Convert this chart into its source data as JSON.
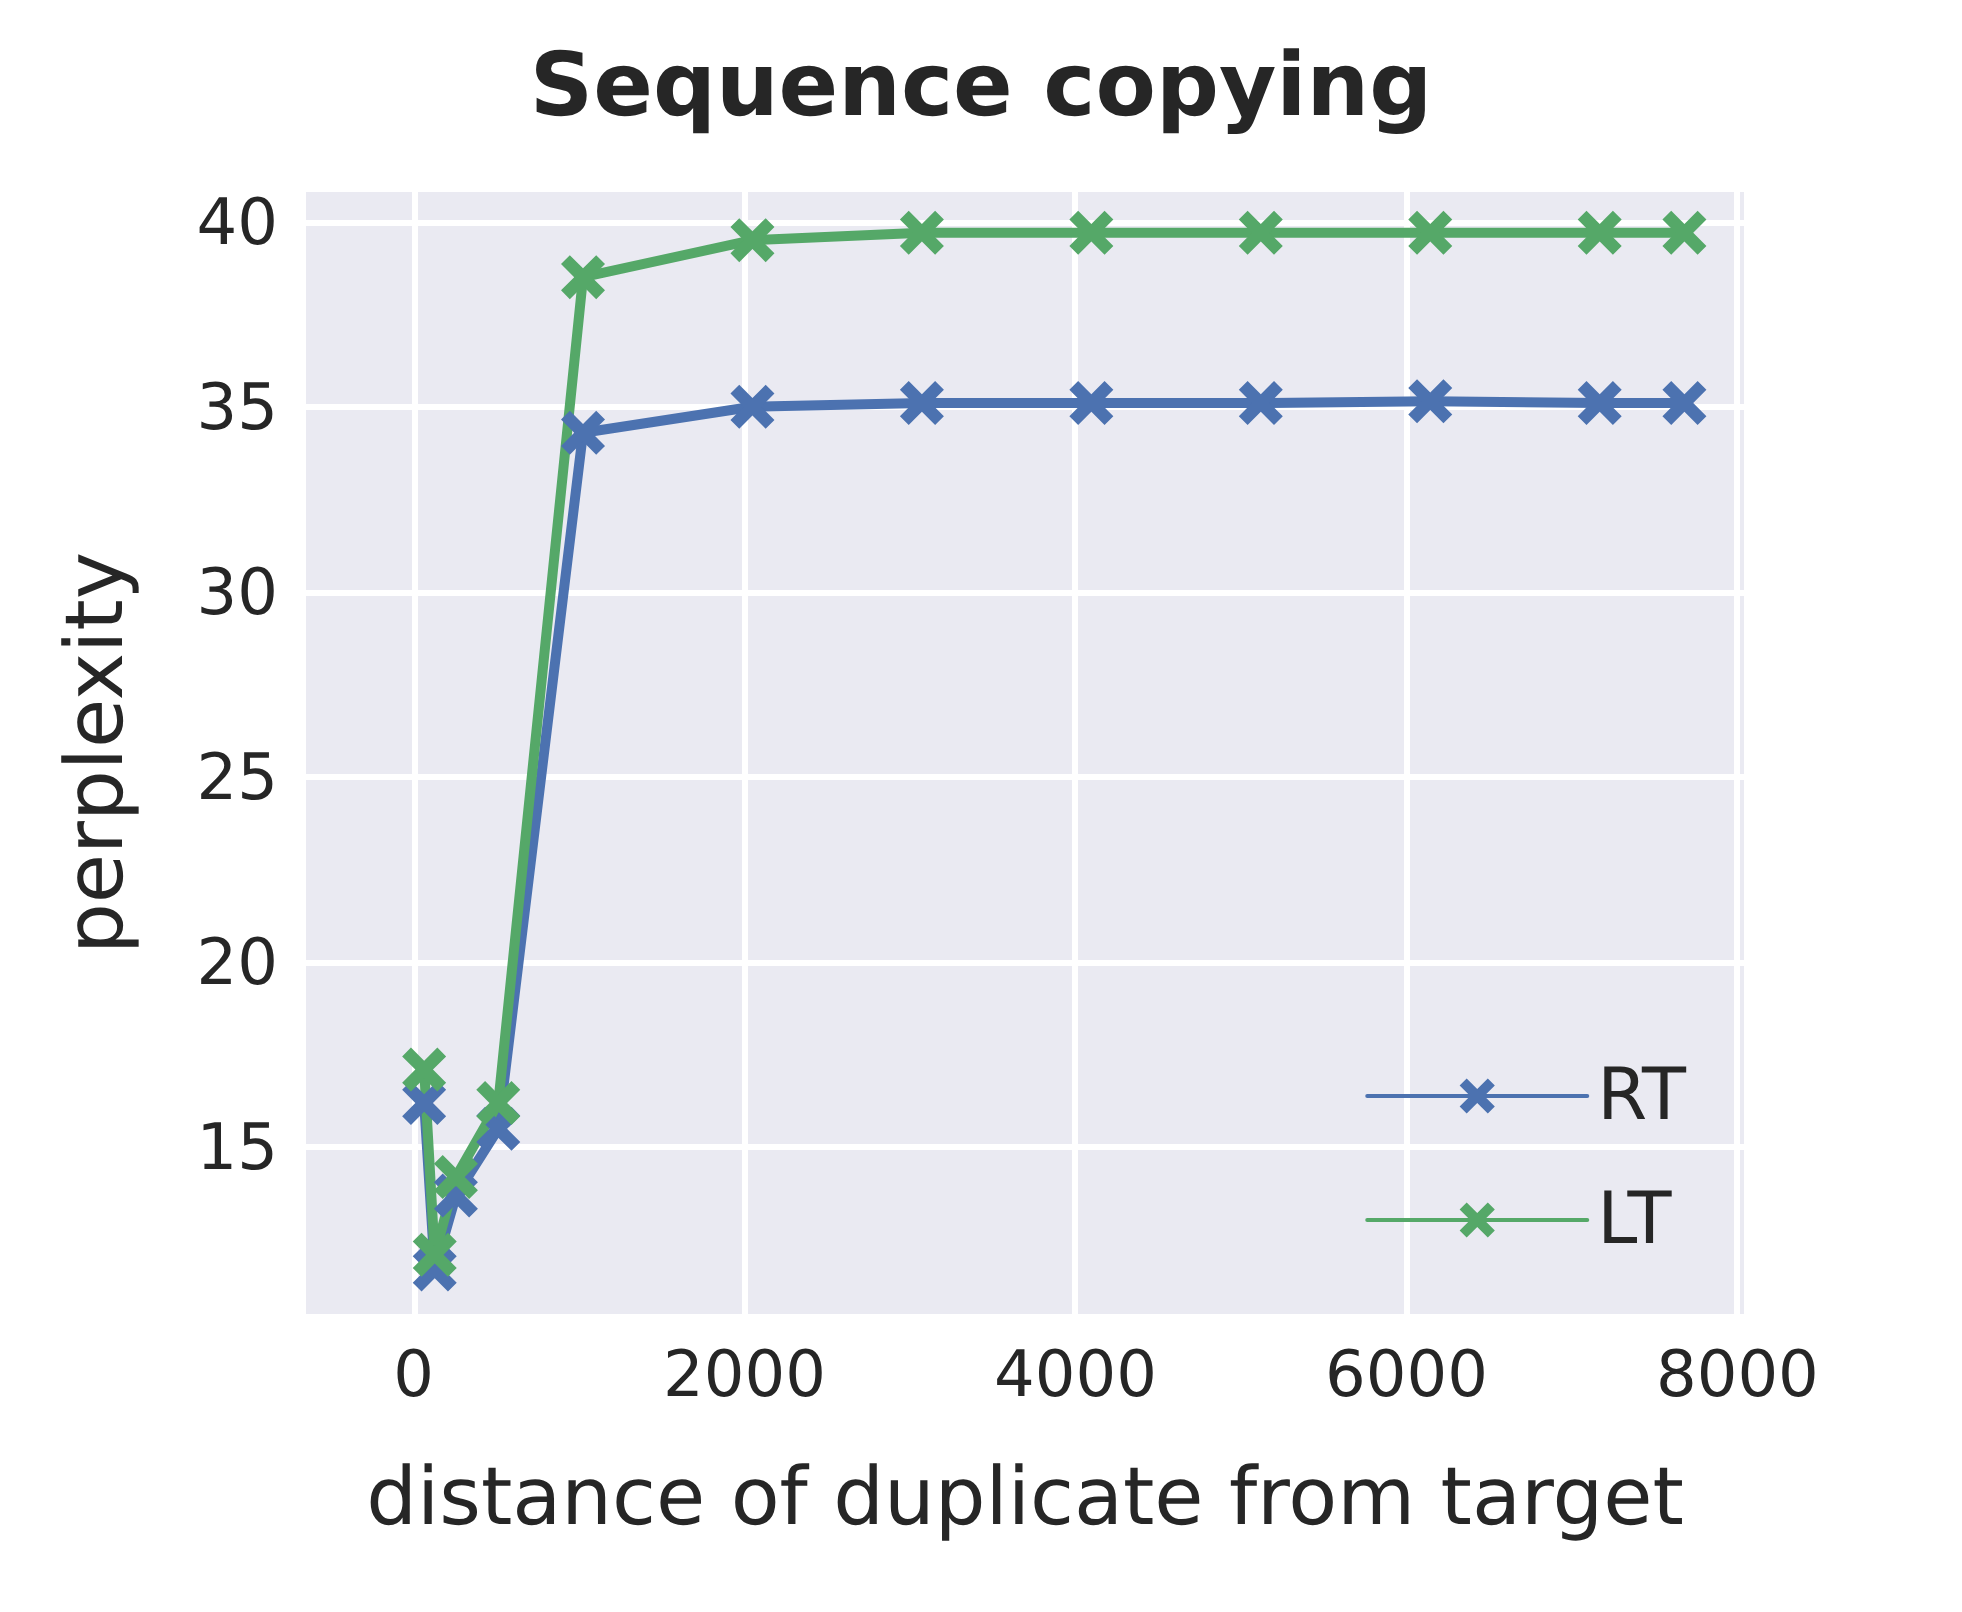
{
  "chart_data": {
    "type": "line",
    "title": "Sequence copying",
    "xlabel": "distance of duplicate from target",
    "ylabel": "perplexity",
    "x": [
      64,
      128,
      256,
      512,
      1024,
      2048,
      3072,
      4096,
      5120,
      6144,
      7168,
      7680
    ],
    "series": [
      {
        "name": "RT",
        "color": "#4c72b0",
        "values": [
          16.2,
          11.7,
          13.7,
          15.5,
          34.3,
          35.0,
          35.1,
          35.1,
          35.1,
          35.15,
          35.1,
          35.1
        ]
      },
      {
        "name": "LT",
        "color": "#55a868",
        "values": [
          17.1,
          12.1,
          14.2,
          16.2,
          38.5,
          39.5,
          39.7,
          39.7,
          39.7,
          39.7,
          39.7,
          39.7
        ]
      }
    ],
    "xlim": [
      -650,
      8040
    ],
    "xticks": [
      0,
      2000,
      4000,
      6000,
      8000
    ],
    "ylim": [
      10.5,
      40.8
    ],
    "yticks": [
      15,
      20,
      25,
      30,
      35,
      40
    ],
    "grid": true,
    "legend": "bottom right",
    "marker": "cross",
    "line_style": "solid"
  }
}
